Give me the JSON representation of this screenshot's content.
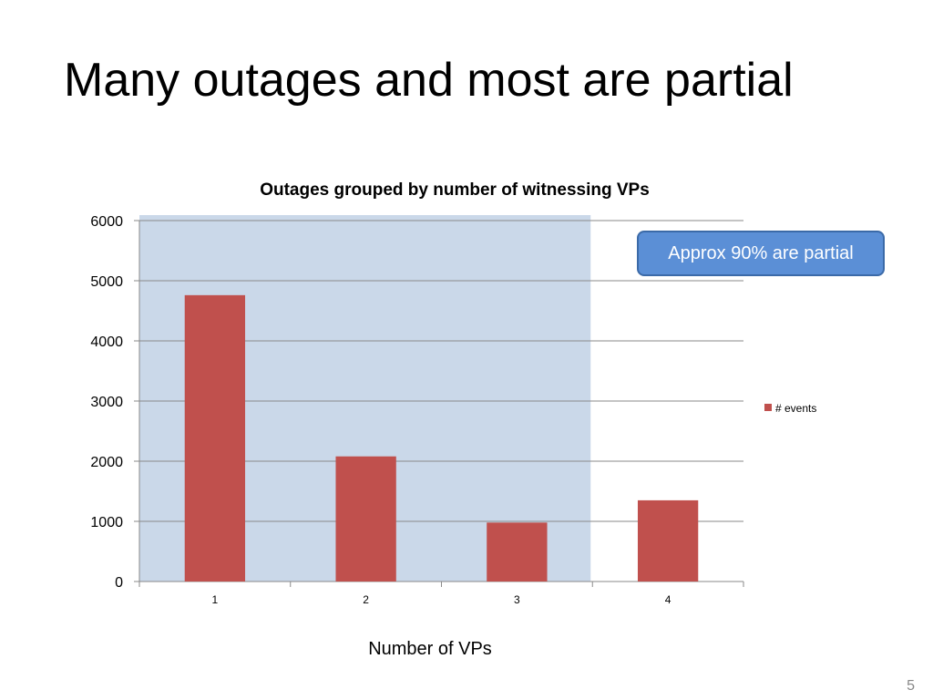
{
  "slide": {
    "title": "Many outages and most are partial",
    "callout": "Approx 90% are partial",
    "page_number": "5"
  },
  "chart_data": {
    "type": "bar",
    "title": "Outages grouped by number of witnessing VPs",
    "xlabel": "Number of VPs",
    "ylabel": "",
    "categories": [
      "1",
      "2",
      "3",
      "4"
    ],
    "series": [
      {
        "name": "# events",
        "values": [
          4760,
          2080,
          980,
          1350
        ],
        "color": "#c0504d"
      }
    ],
    "ylim": [
      0,
      6000
    ],
    "yticks": [
      0,
      1000,
      2000,
      3000,
      4000,
      5000,
      6000
    ],
    "grid": true,
    "legend": "right",
    "highlight_categories": [
      "1",
      "2",
      "3"
    ],
    "highlight_color": "#cad8e9"
  }
}
